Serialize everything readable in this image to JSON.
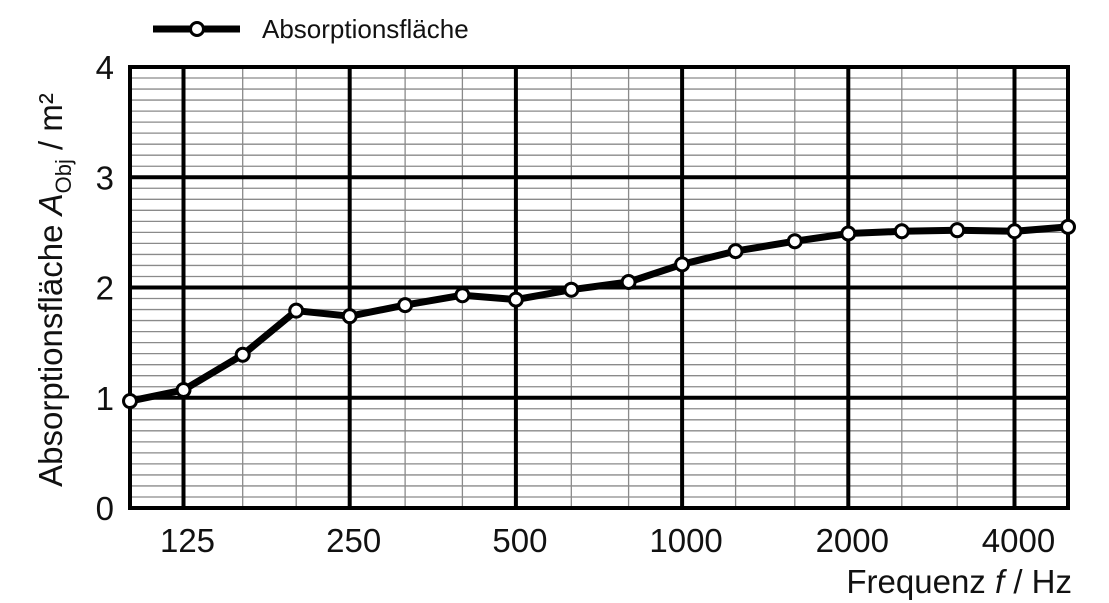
{
  "chart_data": {
    "type": "line",
    "x_scale": "log2 (third-octave bands)",
    "x_ticks": [
      "125",
      "250",
      "500",
      "1000",
      "2000",
      "4000"
    ],
    "x_tick_values": [
      125,
      250,
      500,
      1000,
      2000,
      4000
    ],
    "xlim": [
      100,
      5000
    ],
    "y_ticks": [
      "0",
      "1",
      "2",
      "3",
      "4"
    ],
    "ylim": [
      0,
      4
    ],
    "xlabel": {
      "prefix": "Frequenz ",
      "var": "f",
      "suffix": " / Hz"
    },
    "ylabel": {
      "prefix": "Absorptionsfläche ",
      "var": "A",
      "sub": "Obj",
      "suffix": " / m²"
    },
    "grid": "major and minor",
    "legend_position": "top-left",
    "series": [
      {
        "name": "Absorptionsfläche",
        "marker": "open-circle",
        "color": "#000000",
        "points": [
          {
            "x": 100,
            "y": 0.97
          },
          {
            "x": 125,
            "y": 1.07
          },
          {
            "x": 160,
            "y": 1.39
          },
          {
            "x": 200,
            "y": 1.79
          },
          {
            "x": 250,
            "y": 1.74
          },
          {
            "x": 315,
            "y": 1.84
          },
          {
            "x": 400,
            "y": 1.93
          },
          {
            "x": 500,
            "y": 1.89
          },
          {
            "x": 630,
            "y": 1.98
          },
          {
            "x": 800,
            "y": 2.05
          },
          {
            "x": 1000,
            "y": 2.21
          },
          {
            "x": 1250,
            "y": 2.33
          },
          {
            "x": 1600,
            "y": 2.42
          },
          {
            "x": 2000,
            "y": 2.49
          },
          {
            "x": 2500,
            "y": 2.51
          },
          {
            "x": 3150,
            "y": 2.52
          },
          {
            "x": 4000,
            "y": 2.51
          },
          {
            "x": 5000,
            "y": 2.55
          }
        ]
      }
    ]
  }
}
